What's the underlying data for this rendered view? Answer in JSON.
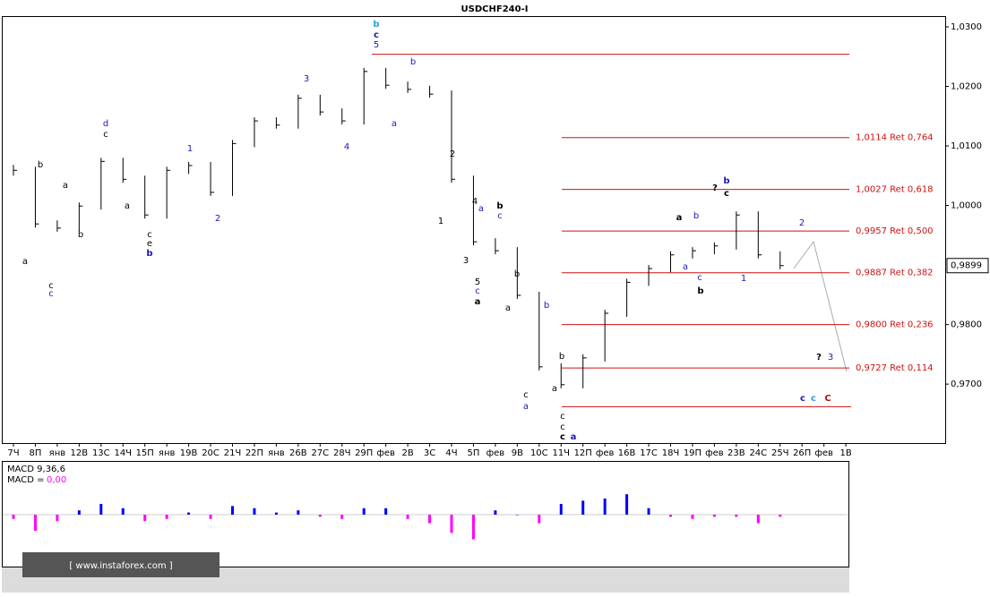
{
  "chart_data": {
    "type": "bar",
    "title": "USDCHF240-I",
    "categories": [
      "7Ч",
      "8П",
      "янв",
      "12В",
      "13С",
      "14Ч",
      "15П",
      "янв",
      "19В",
      "20С",
      "21Ч",
      "22П",
      "янв",
      "26В",
      "27С",
      "28Ч",
      "29П",
      "фев",
      "2В",
      "3С",
      "4Ч",
      "5П",
      "фев",
      "9В",
      "10С",
      "11Ч",
      "12П",
      "фев",
      "16В",
      "17С",
      "18Ч",
      "19П",
      "фев",
      "23В",
      "24С",
      "25Ч",
      "26П",
      "фев",
      "1В"
    ],
    "values": [
      1.0059,
      0.9969,
      0.9962,
      0.9999,
      1.0074,
      1.0044,
      0.9984,
      1.0059,
      1.0067,
      1.0022,
      1.0104,
      1.0142,
      1.0135,
      1.018,
      1.0157,
      1.0142,
      1.0225,
      1.0202,
      1.0195,
      1.0187,
      1.0044,
      0.9939,
      0.9924,
      0.9849,
      0.9729,
      0.9699,
      0.9744,
      0.9819,
      0.9871,
      0.9894,
      0.9917,
      0.9924,
      0.9932,
      0.9984,
      0.9917,
      0.9899,
      null,
      null,
      null
    ],
    "color": "#000000",
    "ylim": [
      0.9601,
      1.0318
    ],
    "yticks": [
      {
        "value": 0.97,
        "label": "0,9700"
      },
      {
        "value": 0.98,
        "label": "0,9800"
      },
      {
        "value": 1.0,
        "label": "1,0000"
      },
      {
        "value": 1.01,
        "label": "1,0100"
      },
      {
        "value": 1.02,
        "label": "1,0200"
      },
      {
        "value": 1.03,
        "label": "1,0300"
      }
    ],
    "last_price": {
      "value": 0.9899,
      "label": "0,9899"
    },
    "fib_levels": [
      {
        "value": 1.0114,
        "label": "1,0114 Ret 0,764"
      },
      {
        "value": 1.0027,
        "label": "1,0027 Ret 0,618"
      },
      {
        "value": 0.9957,
        "label": "0,9957 Ret 0,500"
      },
      {
        "value": 0.9887,
        "label": "0,9887 Ret 0,382"
      },
      {
        "value": 0.98,
        "label": "0,9800 Ret 0,236"
      },
      {
        "value": 0.9727,
        "label": "0,9727 Ret 0,114"
      }
    ],
    "fib_color": "#d01010",
    "range_lines": [
      1.0254,
      0.9662
    ],
    "annotations": [
      {
        "text": "b",
        "color": "#2a9fd6"
      },
      {
        "text": "c",
        "color": "#1a1a9e"
      },
      {
        "text": "5",
        "color": "#1a1ab4"
      },
      {
        "text": "b",
        "color": "#1a1ab4"
      },
      {
        "text": "a",
        "color": "#1a1ab4"
      },
      {
        "text": "4",
        "color": "#1a1ab4"
      },
      {
        "text": "3",
        "color": "#1a1ab4"
      },
      {
        "text": "1",
        "color": "#1a1ab4"
      },
      {
        "text": "2",
        "color": "#1a1ab4"
      },
      {
        "text": "d",
        "color": "#1a1ab4"
      },
      {
        "text": "c",
        "color": "#000000"
      },
      {
        "text": "b",
        "color": "#000000"
      },
      {
        "text": "a",
        "color": "#000000"
      },
      {
        "text": "c",
        "color": "#000000"
      },
      {
        "text": "c",
        "color": "#1a1ab4"
      },
      {
        "text": "a",
        "color": "#000000"
      },
      {
        "text": "b",
        "color": "#000000"
      },
      {
        "text": "a",
        "color": "#000000"
      },
      {
        "text": "c",
        "color": "#000000"
      },
      {
        "text": "e",
        "color": "#000000"
      },
      {
        "text": "b",
        "color": "#1a1ab4"
      },
      {
        "text": "2",
        "color": "#000000"
      },
      {
        "text": "1",
        "color": "#000000"
      },
      {
        "text": "4",
        "color": "#000000"
      },
      {
        "text": "3",
        "color": "#000000"
      },
      {
        "text": "a",
        "color": "#1a1ab4"
      },
      {
        "text": "b",
        "color": "#000000"
      },
      {
        "text": "c",
        "color": "#1a1ab4"
      },
      {
        "text": "5",
        "color": "#000000"
      },
      {
        "text": "c",
        "color": "#1a1ab4"
      },
      {
        "text": "a",
        "color": "#000000"
      },
      {
        "text": "b",
        "color": "#000000"
      },
      {
        "text": "a",
        "color": "#000000"
      },
      {
        "text": "c",
        "color": "#000000"
      },
      {
        "text": "a",
        "color": "#1a1ab4"
      },
      {
        "text": "b",
        "color": "#1a1ab4"
      },
      {
        "text": "b",
        "color": "#000000"
      },
      {
        "text": "a",
        "color": "#000000"
      },
      {
        "text": "c",
        "color": "#000000"
      },
      {
        "text": "c",
        "color": "#000000"
      },
      {
        "text": "c",
        "color": "#000000"
      },
      {
        "text": "a",
        "color": "#1a1ab4"
      },
      {
        "text": "a",
        "color": "#000000"
      },
      {
        "text": "b",
        "color": "#1a1ab4"
      },
      {
        "text": "c",
        "color": "#1a1ab4"
      },
      {
        "text": "a",
        "color": "#1a1ab4"
      },
      {
        "text": "b",
        "color": "#000000"
      },
      {
        "text": "1",
        "color": "#1a1ab4"
      },
      {
        "text": "?",
        "color": "#000000"
      },
      {
        "text": "b",
        "color": "#1a1ab4"
      },
      {
        "text": "c",
        "color": "#000000"
      },
      {
        "text": "2",
        "color": "#1a1ab4"
      },
      {
        "text": "?",
        "color": "#000000"
      },
      {
        "text": "3",
        "color": "#1a1ab4"
      },
      {
        "text": "c",
        "color": "#1a1ab4"
      },
      {
        "text": "c",
        "color": "#2a9fd6"
      },
      {
        "text": "C",
        "color": "#b01010"
      }
    ],
    "macd": {
      "name": "MACD 9,36,6",
      "value_name": "MACD =",
      "value_label": "0,00",
      "values": [
        -0.0004,
        -0.0015,
        -0.0006,
        0.0004,
        0.001,
        0.0006,
        -0.0006,
        -0.0004,
        0.0002,
        -0.0004,
        0.0008,
        0.0006,
        0.0002,
        0.0004,
        -0.0002,
        -0.0004,
        0.0006,
        0.0006,
        -0.0004,
        -0.0008,
        -0.0017,
        -0.0023,
        0.0004,
        0,
        -0.0008,
        0.001,
        0.0013,
        0.0015,
        0.0019,
        0.0006,
        -0.0002,
        -0.0004,
        -0.0002,
        -0.0002,
        -0.0008,
        -0.0002,
        null,
        null,
        null
      ],
      "ylim": [
        -0.0025,
        0.0025
      ],
      "pos_color": "#0000ff",
      "neg_color": "#ff00ff"
    },
    "watermark": "[ www.instaforex.com ]"
  }
}
